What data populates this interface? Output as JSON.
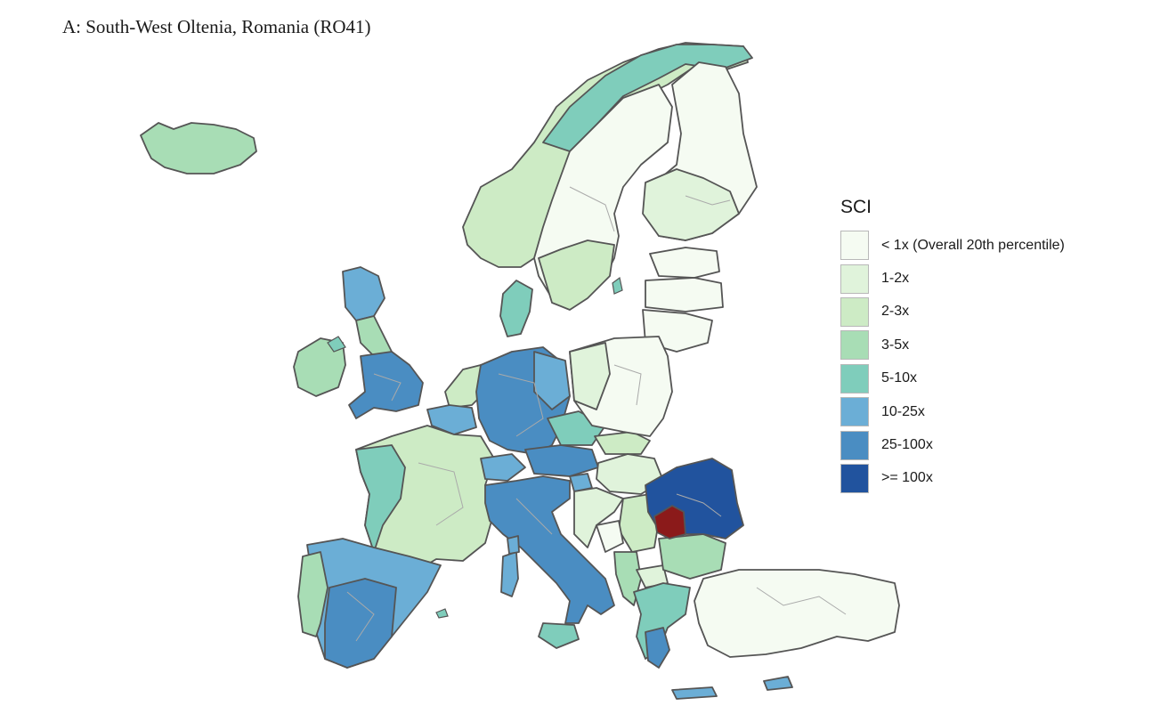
{
  "title": "A: South-West Oltenia, Romania (RO41)",
  "legend": {
    "title": "SCI",
    "items": [
      {
        "label": "< 1x (Overall 20th percentile)",
        "color": "#f5fbf2"
      },
      {
        "label": "1-2x",
        "color": "#e0f3db"
      },
      {
        "label": "2-3x",
        "color": "#cdebc5"
      },
      {
        "label": "3-5x",
        "color": "#a8ddb5"
      },
      {
        "label": "5-10x",
        "color": "#7fcdbb"
      },
      {
        "label": "10-25x",
        "color": "#6baed6"
      },
      {
        "label": "25-100x",
        "color": "#4a8dc2"
      },
      {
        "label": ">= 100x",
        "color": "#21539e"
      }
    ]
  },
  "highlight_color": "#8b1a1a",
  "border_color": "#555555",
  "inner_border_color": "#aaaaaa"
}
